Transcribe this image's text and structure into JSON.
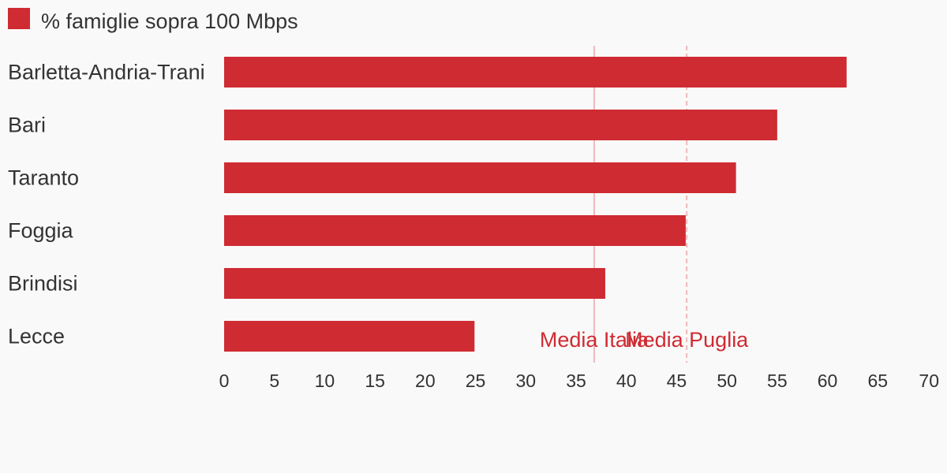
{
  "chart_data": {
    "type": "bar",
    "orientation": "horizontal",
    "categories": [
      "Barletta-Andria-Trani",
      "Bari",
      "Taranto",
      "Foggia",
      "Brindisi",
      "Lecce"
    ],
    "series": [
      {
        "name": "% famiglie sopra 100 Mbps",
        "color": "#cf2b32",
        "values": [
          61.9,
          55.0,
          50.9,
          45.9,
          37.9,
          24.9
        ]
      }
    ],
    "reference_lines": [
      {
        "label": "Media Italia",
        "value": 36.8,
        "color": "#f2b8bb",
        "style": "solid"
      },
      {
        "label": "Media Puglia",
        "value": 46.0,
        "color": "#f2b8bb",
        "style": "dashed"
      }
    ],
    "reference_label_color": "#cf2b32",
    "x_ticks": [
      0,
      5,
      10,
      15,
      20,
      25,
      30,
      35,
      40,
      45,
      50,
      55,
      60,
      65,
      70
    ],
    "xlim": [
      0,
      70
    ],
    "grid": false,
    "legend": "top-left",
    "title": "",
    "xlabel": "",
    "ylabel": ""
  }
}
